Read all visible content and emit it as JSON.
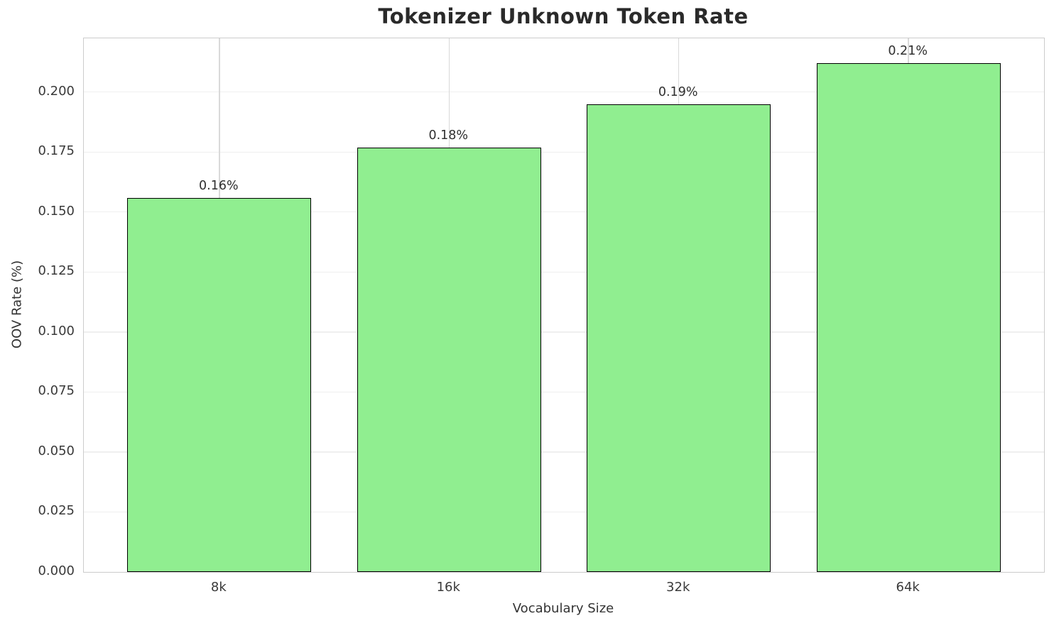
{
  "chart_data": {
    "type": "bar",
    "title": "Tokenizer Unknown Token Rate",
    "xlabel": "Vocabulary Size",
    "ylabel": "OOV Rate (%)",
    "categories": [
      "8k",
      "16k",
      "32k",
      "64k"
    ],
    "values": [
      0.156,
      0.177,
      0.195,
      0.212
    ],
    "bar_labels": [
      "0.16%",
      "0.18%",
      "0.19%",
      "0.21%"
    ],
    "yticks": [
      0,
      0.025,
      0.05,
      0.075,
      0.1,
      0.125,
      0.15,
      0.175,
      0.2
    ],
    "ytick_labels": [
      "0.000",
      "0.025",
      "0.050",
      "0.075",
      "0.100",
      "0.125",
      "0.150",
      "0.175",
      "0.200"
    ],
    "ylim": [
      0,
      0.2224
    ],
    "xlim": [
      -0.59,
      3.59
    ],
    "bar_width": 0.8,
    "grid": true,
    "legend_position": "none",
    "colors": {
      "bar_fill": "#90ee90",
      "bar_edge": "#000000",
      "grid_h": "#efefef",
      "grid_v": "#d9d9d9",
      "spine": "#cccccc",
      "text": "#3a3a3a",
      "title": "#2a2a2a"
    }
  }
}
